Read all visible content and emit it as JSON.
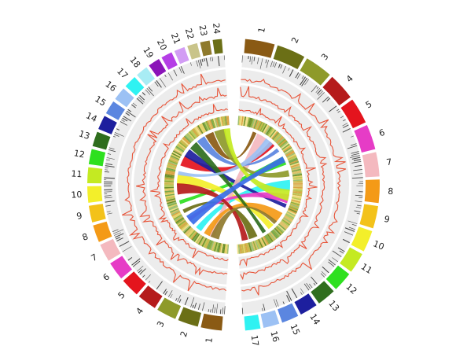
{
  "colors": {
    "track_line": "#e8553a",
    "track_bg": "#ececec",
    "tick": "#444444"
  },
  "right_half": [
    {
      "label": "1",
      "color": "#8a5a14"
    },
    {
      "label": "2",
      "color": "#6b6f16"
    },
    {
      "label": "3",
      "color": "#8e9a2a"
    },
    {
      "label": "4",
      "color": "#b51b1b"
    },
    {
      "label": "5",
      "color": "#e4141d"
    },
    {
      "label": "6",
      "color": "#e63cc6"
    },
    {
      "label": "7",
      "color": "#f4b9bf"
    },
    {
      "label": "8",
      "color": "#f49a17"
    },
    {
      "label": "9",
      "color": "#f3c21a"
    },
    {
      "label": "10",
      "color": "#f3ef2a"
    },
    {
      "label": "11",
      "color": "#c4ea22"
    },
    {
      "label": "12",
      "color": "#2ee01f"
    },
    {
      "label": "13",
      "color": "#2f6e1e"
    },
    {
      "label": "14",
      "color": "#1d1f9e"
    },
    {
      "label": "15",
      "color": "#5b86e0"
    },
    {
      "label": "16",
      "color": "#9cc1f4"
    },
    {
      "label": "17",
      "color": "#2ff2f2"
    }
  ],
  "left_half": [
    {
      "label": "1",
      "color": "#8a5a14"
    },
    {
      "label": "2",
      "color": "#6b6f16"
    },
    {
      "label": "3",
      "color": "#8e9a2a"
    },
    {
      "label": "4",
      "color": "#b51b1b"
    },
    {
      "label": "5",
      "color": "#e4141d"
    },
    {
      "label": "6",
      "color": "#e63cc6"
    },
    {
      "label": "7",
      "color": "#f4b9bf"
    },
    {
      "label": "8",
      "color": "#f49a17"
    },
    {
      "label": "9",
      "color": "#f3c21a"
    },
    {
      "label": "10",
      "color": "#f3ef2a"
    },
    {
      "label": "11",
      "color": "#c4ea22"
    },
    {
      "label": "12",
      "color": "#2ee01f"
    },
    {
      "label": "13",
      "color": "#2f6e1e"
    },
    {
      "label": "14",
      "color": "#1d1f9e"
    },
    {
      "label": "15",
      "color": "#5b86e0"
    },
    {
      "label": "16",
      "color": "#9cc1f4"
    },
    {
      "label": "17",
      "color": "#2ff2f2"
    },
    {
      "label": "18",
      "color": "#a8ecf4"
    },
    {
      "label": "19",
      "color": "#8a14b8"
    },
    {
      "label": "20",
      "color": "#b53ee6"
    },
    {
      "label": "21",
      "color": "#d29cf4"
    },
    {
      "label": "22",
      "color": "#c9c48a"
    },
    {
      "label": "23",
      "color": "#8f7a2c"
    },
    {
      "label": "24",
      "color": "#6b6f16"
    }
  ],
  "links": [
    {
      "color": "#8a5a14"
    },
    {
      "color": "#e4141d"
    },
    {
      "color": "#2ee01f"
    },
    {
      "color": "#2ff2f2"
    },
    {
      "color": "#1d1f9e"
    },
    {
      "color": "#f3ef2a"
    },
    {
      "color": "#6b6f16"
    },
    {
      "color": "#f4b9bf"
    },
    {
      "color": "#5b86e0"
    },
    {
      "color": "#8e9a2a"
    },
    {
      "color": "#e63cc6"
    },
    {
      "color": "#f49a17"
    },
    {
      "color": "#2f6e1e"
    },
    {
      "color": "#b51b1b"
    },
    {
      "color": "#9cc1f4"
    },
    {
      "color": "#c4ea22"
    },
    {
      "color": "#8f7a2c"
    },
    {
      "color": "#3a6ee8"
    }
  ]
}
